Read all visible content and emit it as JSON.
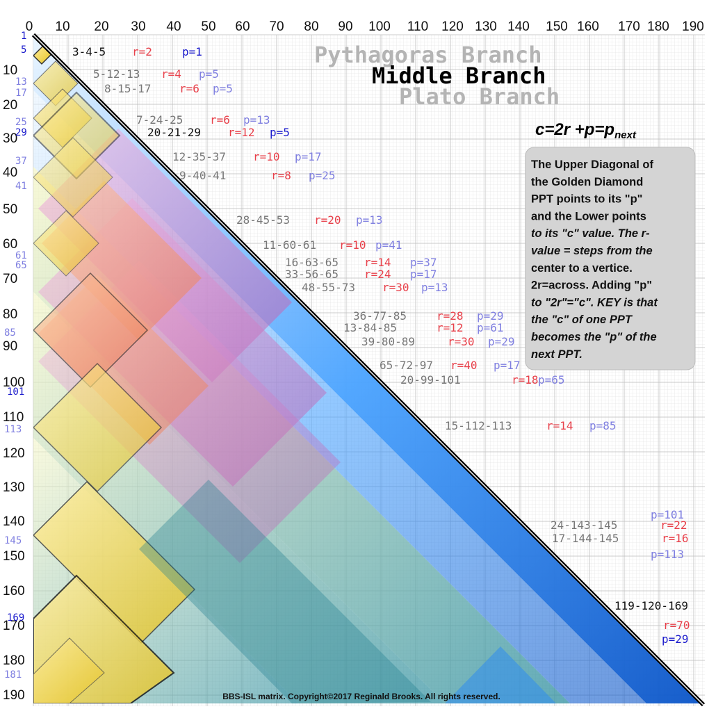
{
  "axes": {
    "top_ticks": [
      "0",
      "10",
      "20",
      "30",
      "40",
      "50",
      "60",
      "70",
      "80",
      "90",
      "100",
      "110",
      "120",
      "130",
      "140",
      "150",
      "160",
      "170",
      "180",
      "190"
    ],
    "left_ticks": [
      "10",
      "20",
      "30",
      "40",
      "50",
      "60",
      "70",
      "80",
      "90",
      "100",
      "110",
      "120",
      "130",
      "140",
      "150",
      "160",
      "170",
      "180",
      "190"
    ],
    "left_markers": [
      "1",
      "5",
      "13",
      "17",
      "25",
      "29",
      "37",
      "41",
      "61",
      "65",
      "85",
      "101",
      "113",
      "145",
      "169",
      "181"
    ]
  },
  "titles": {
    "branch_pythagoras": "Pythagoras Branch",
    "branch_middle": "Middle Branch",
    "branch_plato": "Plato Branch"
  },
  "formula": {
    "c": "c",
    "eq1": "=2r +p=p",
    "sub": "next"
  },
  "info_box": {
    "lines": [
      "The Upper Diagonal of",
      "the Golden Diamond",
      "PPT points to its \"p\"",
      "and the Lower points",
      "to its \"c\" value. The r-",
      "value = steps from the",
      "center to a vertice.",
      "2r=across. Adding \"p\"",
      "to \"2r\"=\"c\". KEY is that",
      "the \"c\" of one PPT",
      "becomes the \"p\" of the",
      "next PPT."
    ]
  },
  "triples": [
    {
      "t": "3-4-5",
      "r": "r=2",
      "p": "p=1"
    },
    {
      "t": "5-12-13",
      "r": "r=4",
      "p": "p=5"
    },
    {
      "t": "8-15-17",
      "r": "r=6",
      "p": "p=5"
    },
    {
      "t": "7-24-25",
      "r": "r=6",
      "p": "p=13"
    },
    {
      "t": "20-21-29",
      "r": "r=12",
      "p": "p=5"
    },
    {
      "t": "12-35-37",
      "r": "r=10",
      "p": "p=17"
    },
    {
      "t": "9-40-41",
      "r": "r=8",
      "p": "p=25"
    },
    {
      "t": "28-45-53",
      "r": "r=20",
      "p": "p=13"
    },
    {
      "t": "11-60-61",
      "r": "r=10",
      "p": "p=41"
    },
    {
      "t": "16-63-65",
      "r": "r=14",
      "p": "p=37"
    },
    {
      "t": "33-56-65",
      "r": "r=24",
      "p": "p=17"
    },
    {
      "t": "48-55-73",
      "r": "r=30",
      "p": "p=13"
    },
    {
      "t": "36-77-85",
      "r": "r=28",
      "p": "p=29"
    },
    {
      "t": "13-84-85",
      "r": "r=12",
      "p": "p=61"
    },
    {
      "t": "39-80-89",
      "r": "r=30",
      "p": "p=29"
    },
    {
      "t": "65-72-97",
      "r": "r=40",
      "p": "p=17"
    },
    {
      "t": "20-99-101",
      "r": "r=18",
      "p": "p=65"
    },
    {
      "t": "15-112-113",
      "r": "r=14",
      "p": "p=85"
    },
    {
      "t": "24-143-145",
      "r": "r=22",
      "p": "p=101"
    },
    {
      "t": "17-144-145",
      "r": "r=16",
      "p": "p=113"
    },
    {
      "t": "119-120-169",
      "r": "r=70",
      "p": "p=29"
    }
  ],
  "footer": "BBS-ISL matrix. Copyright©2017 Reginald Brooks. All rights reserved.",
  "colors": {
    "grid": "#c9c9c9",
    "red": "#e8404a",
    "blue_dark": "#1a1acc",
    "purple": "#7f7fe0",
    "gray_text": "#777777",
    "info_bg": "#d4d4d4",
    "yellow": "#f4d23a",
    "pink": "#e07ac4",
    "blue_band": "#2f8df0"
  }
}
